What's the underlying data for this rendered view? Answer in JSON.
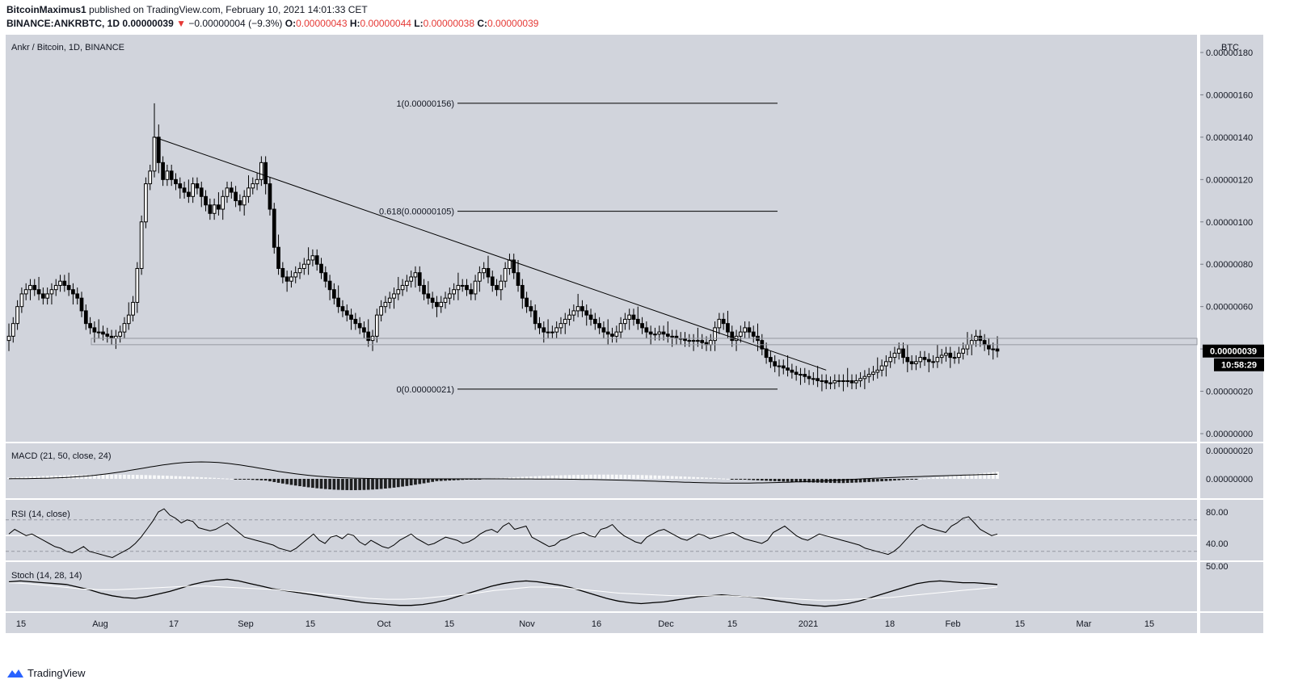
{
  "header": {
    "author": "BitcoinMaximus1",
    "published_text": "published on TradingView.com, February 10, 2021 14:01:33 CET",
    "symbol": "BINANCE:ANKRBTC, 1D",
    "last": "0.00000039",
    "change_arrow": "▼",
    "change": "−0.00000004 (−9.3%)",
    "o_label": "O:",
    "o": "0.00000043",
    "h_label": "H:",
    "h": "0.00000044",
    "l_label": "L:",
    "l": "0.00000038",
    "c_label": "C:",
    "c": "0.00000039"
  },
  "brand": {
    "name": "TradingView",
    "icon": "tradingview-logo-icon"
  },
  "colors": {
    "pane_bg": "#d1d4dc",
    "candle": "#000000",
    "change_down": "#e53935",
    "support_zone": "#c4c7cf"
  },
  "chart_data": [
    {
      "type": "candlestick",
      "title": "Ankr / Bitcoin, 1D, BINANCE",
      "ylabel": "BTC",
      "price_unit_note": "values in units of 1e-8 BTC (0.00000001)",
      "x_ticks": [
        "15",
        "Aug",
        "17",
        "Sep",
        "15",
        "Oct",
        "15",
        "Nov",
        "16",
        "Dec",
        "15",
        "2021",
        "18",
        "Feb",
        "15",
        "Mar",
        "15"
      ],
      "y_ticks": [
        "0.00000000",
        "0.00000020",
        "0.00000040",
        "0.00000060",
        "0.00000080",
        "0.00000100",
        "0.00000120",
        "0.00000140",
        "0.00000160",
        "0.00000180"
      ],
      "ylim": [
        0,
        180
      ],
      "last_price_label": "0.00000039",
      "countdown_label": "10:58:29",
      "close": [
        46,
        52,
        60,
        66,
        68,
        70,
        68,
        66,
        64,
        66,
        68,
        70,
        72,
        70,
        68,
        66,
        64,
        58,
        52,
        50,
        48,
        48,
        47,
        46,
        45,
        46,
        48,
        52,
        56,
        62,
        78,
        100,
        118,
        124,
        140,
        128,
        120,
        124,
        120,
        118,
        116,
        114,
        112,
        118,
        116,
        112,
        108,
        104,
        108,
        106,
        112,
        116,
        114,
        110,
        108,
        112,
        116,
        118,
        120,
        128,
        118,
        106,
        88,
        78,
        74,
        72,
        74,
        76,
        78,
        80,
        82,
        84,
        80,
        76,
        72,
        68,
        64,
        60,
        58,
        56,
        54,
        52,
        50,
        48,
        44,
        46,
        56,
        60,
        62,
        64,
        66,
        68,
        70,
        72,
        74,
        76,
        70,
        66,
        64,
        62,
        60,
        62,
        64,
        66,
        68,
        70,
        70,
        68,
        66,
        72,
        76,
        78,
        74,
        70,
        68,
        72,
        78,
        82,
        76,
        70,
        64,
        60,
        58,
        52,
        50,
        48,
        48,
        48,
        50,
        52,
        54,
        56,
        58,
        60,
        58,
        56,
        54,
        52,
        50,
        48,
        47,
        46,
        48,
        52,
        54,
        56,
        54,
        52,
        50,
        48,
        47,
        47,
        48,
        47,
        46,
        46,
        45,
        45,
        44,
        44,
        44,
        44,
        43,
        42,
        44,
        50,
        54,
        52,
        48,
        44,
        46,
        48,
        50,
        48,
        46,
        44,
        40,
        36,
        34,
        32,
        32,
        31,
        30,
        29,
        28,
        28,
        27,
        26,
        26,
        25,
        25,
        24,
        24,
        25,
        25,
        25,
        25,
        24,
        25,
        26,
        27,
        28,
        29,
        30,
        32,
        34,
        36,
        38,
        40,
        36,
        34,
        33,
        34,
        36,
        35,
        34,
        34,
        36,
        37,
        38,
        36,
        36,
        38,
        40,
        42,
        44,
        46,
        44,
        42,
        40,
        40,
        39
      ],
      "highs_sample": {
        "peak_high": 156,
        "peak_close": 140,
        "sep_high": 128,
        "oct_high": 86
      },
      "support_zone": [
        42,
        45
      ],
      "trendline": [
        {
          "x_index": 34,
          "y": 140
        },
        {
          "x_index": 191,
          "y": 30
        }
      ],
      "fib_levels": [
        {
          "label": "1(0.00000156)",
          "ratio": 1,
          "value": 156
        },
        {
          "label": "0.618(0.00000105)",
          "ratio": 0.618,
          "value": 105
        },
        {
          "label": "0(0.00000021)",
          "ratio": 0,
          "value": 21
        }
      ]
    },
    {
      "type": "bar",
      "title": "MACD (21, 50, close, 24)",
      "y_ticks": [
        "0.00000020",
        "0.00000000"
      ],
      "ylim": [
        -6,
        20
      ],
      "note": "histogram + MACD line, values in 1e-8 BTC"
    },
    {
      "type": "line",
      "title": "RSI (14, close)",
      "y_ticks": [
        "80.00",
        "40.00"
      ],
      "ylim": [
        20,
        90
      ],
      "levels": [
        70,
        50,
        30
      ],
      "series": [
        {
          "name": "RSI",
          "values": [
            52,
            58,
            54,
            50,
            52,
            48,
            44,
            40,
            36,
            34,
            30,
            28,
            32,
            36,
            30,
            28,
            26,
            24,
            22,
            26,
            30,
            34,
            40,
            48,
            58,
            68,
            80,
            84,
            76,
            72,
            66,
            70,
            68,
            60,
            58,
            56,
            58,
            62,
            66,
            60,
            54,
            48,
            46,
            44,
            42,
            40,
            38,
            34,
            32,
            30,
            34,
            40,
            46,
            52,
            44,
            40,
            48,
            50,
            46,
            52,
            50,
            42,
            38,
            44,
            40,
            36,
            34,
            38,
            44,
            48,
            52,
            46,
            42,
            38,
            40,
            44,
            48,
            46,
            44,
            40,
            42,
            46,
            52,
            56,
            58,
            54,
            62,
            66,
            58,
            60,
            62,
            48,
            44,
            40,
            36,
            38,
            44,
            46,
            50,
            52,
            54,
            50,
            48,
            58,
            60,
            64,
            56,
            50,
            46,
            42,
            40,
            48,
            52,
            56,
            58,
            54,
            50,
            46,
            44,
            48,
            52,
            50,
            46,
            48,
            50,
            52,
            54,
            50,
            46,
            44,
            42,
            40,
            44,
            54,
            58,
            62,
            56,
            50,
            46,
            44,
            48,
            52,
            50,
            48,
            46,
            44,
            42,
            40,
            38,
            34,
            32,
            30,
            28,
            26,
            30,
            36,
            44,
            52,
            60,
            64,
            60,
            58,
            56,
            54,
            62,
            66,
            72,
            74,
            66,
            58,
            54,
            50,
            52
          ]
        }
      ]
    },
    {
      "type": "line",
      "title": "Stoch (14, 28, 14)",
      "y_ticks": [
        "50.00"
      ],
      "ylim": [
        0,
        100
      ],
      "series": [
        {
          "name": "%K",
          "values": [
            62,
            64,
            62,
            60,
            58,
            56,
            50,
            44,
            36,
            30,
            26,
            24,
            28,
            34,
            40,
            48,
            56,
            62,
            66,
            68,
            64,
            58,
            52,
            46,
            42,
            38,
            34,
            30,
            26,
            22,
            18,
            14,
            12,
            10,
            8,
            8,
            10,
            14,
            20,
            28,
            36,
            44,
            52,
            58,
            62,
            64,
            62,
            58,
            54,
            48,
            40,
            32,
            24,
            18,
            14,
            12,
            14,
            16,
            20,
            24,
            28,
            30,
            32,
            30,
            28,
            26,
            22,
            18,
            14,
            10,
            8,
            6,
            8,
            12,
            18,
            26,
            34,
            42,
            50,
            58,
            62,
            64,
            62,
            60,
            60,
            58,
            56
          ]
        },
        {
          "name": "%D",
          "values": [
            60,
            58,
            54,
            50,
            46,
            44,
            44,
            46,
            48,
            50,
            52,
            52,
            50,
            48,
            46,
            44,
            40,
            36,
            32,
            28,
            24,
            22,
            22,
            24,
            28,
            32,
            36,
            42,
            46,
            50,
            50,
            48,
            44,
            40,
            36,
            34,
            32,
            30,
            30,
            30,
            30,
            28,
            26,
            24,
            22,
            20,
            20,
            22,
            24,
            26,
            30,
            34,
            38,
            42,
            46,
            50
          ]
        }
      ]
    }
  ]
}
